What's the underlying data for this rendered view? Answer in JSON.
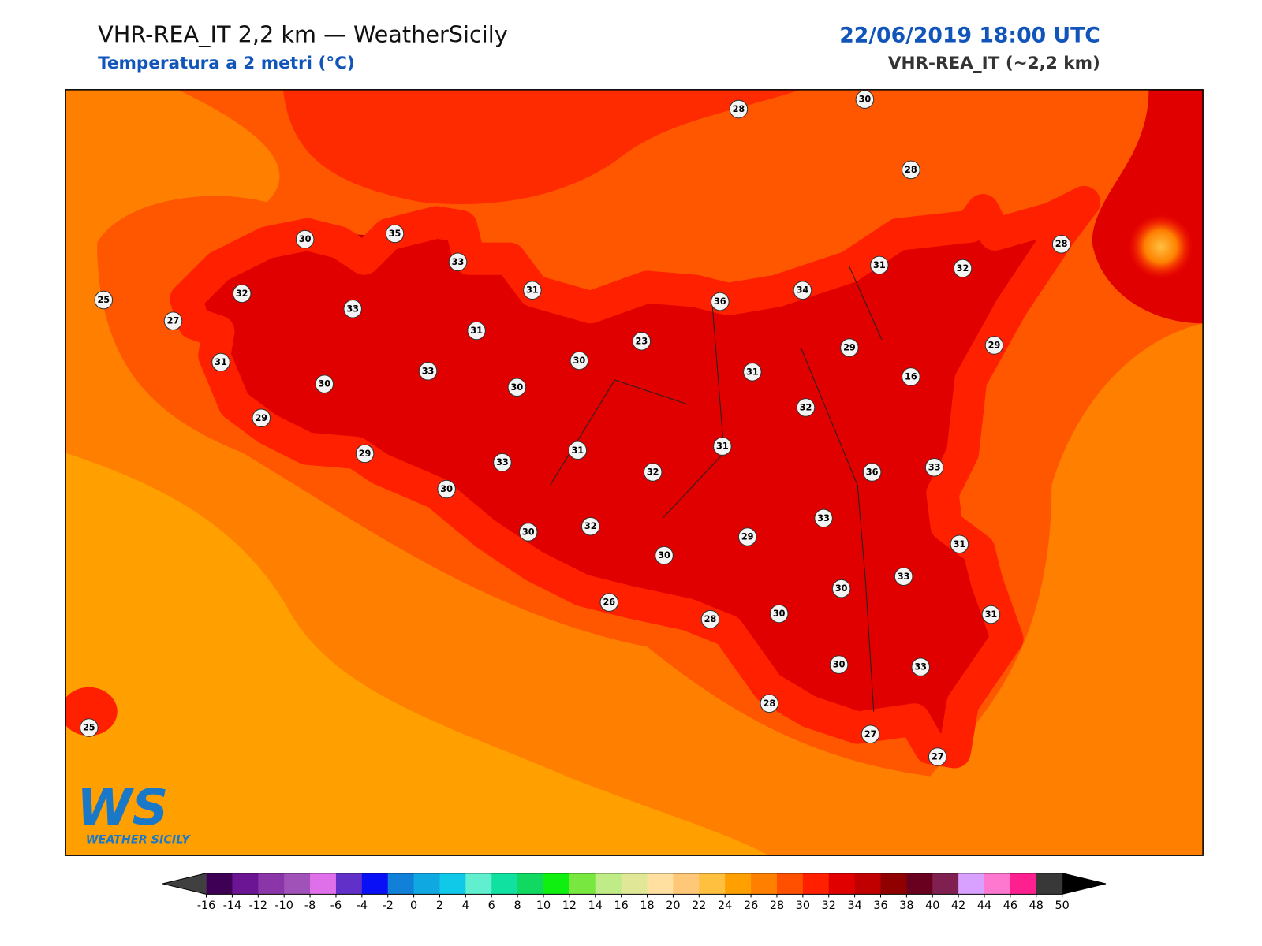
{
  "header": {
    "title": "VHR-REA_IT 2,2 km — WeatherSicily",
    "subtitle": "Temperatura a 2 metri (°C)",
    "datetime": "22/06/2019 18:00 UTC",
    "model": "VHR-REA_IT (~2,2 km)"
  },
  "stations": [
    28,
    30,
    28,
    30,
    35,
    33,
    32,
    25,
    27,
    33,
    31,
    31,
    36,
    34,
    31,
    32,
    28,
    31,
    30,
    33,
    30,
    30,
    23,
    31,
    29,
    16,
    29,
    32,
    29,
    29,
    31,
    33,
    32,
    31,
    36,
    33,
    30,
    30,
    32,
    33,
    29,
    30,
    31,
    33,
    30,
    26,
    28,
    30,
    31,
    30,
    33,
    25,
    28,
    27,
    27
  ],
  "colorbar": {
    "ticks": [
      -16,
      -14,
      -12,
      -10,
      -8,
      -6,
      -4,
      -2,
      0,
      2,
      4,
      6,
      8,
      10,
      12,
      14,
      16,
      18,
      20,
      22,
      24,
      26,
      28,
      30,
      32,
      34,
      36,
      38,
      40,
      42,
      44,
      46,
      48,
      50
    ],
    "colors": [
      "#3d0055",
      "#6b1595",
      "#8a35a8",
      "#a052b8",
      "#e070ea",
      "#6030c8",
      "#0a10f5",
      "#1080d8",
      "#10a8e0",
      "#10c8e8",
      "#60f0d0",
      "#10e0a0",
      "#10d860",
      "#10f010",
      "#78e840",
      "#c0ec88",
      "#e0e898",
      "#ffe0a0",
      "#ffc878",
      "#ffc040",
      "#ffa000",
      "#ff8000",
      "#ff5000",
      "#ff2000",
      "#e00000",
      "#c00000",
      "#900000",
      "#6a0020",
      "#802050",
      "#d8a0ff",
      "#ff78d0",
      "#ff2090",
      "#383838"
    ],
    "under_color": "#404040",
    "over_color": "#000000"
  },
  "logo": {
    "text": "WS",
    "caption": "WEATHER SICILY"
  }
}
